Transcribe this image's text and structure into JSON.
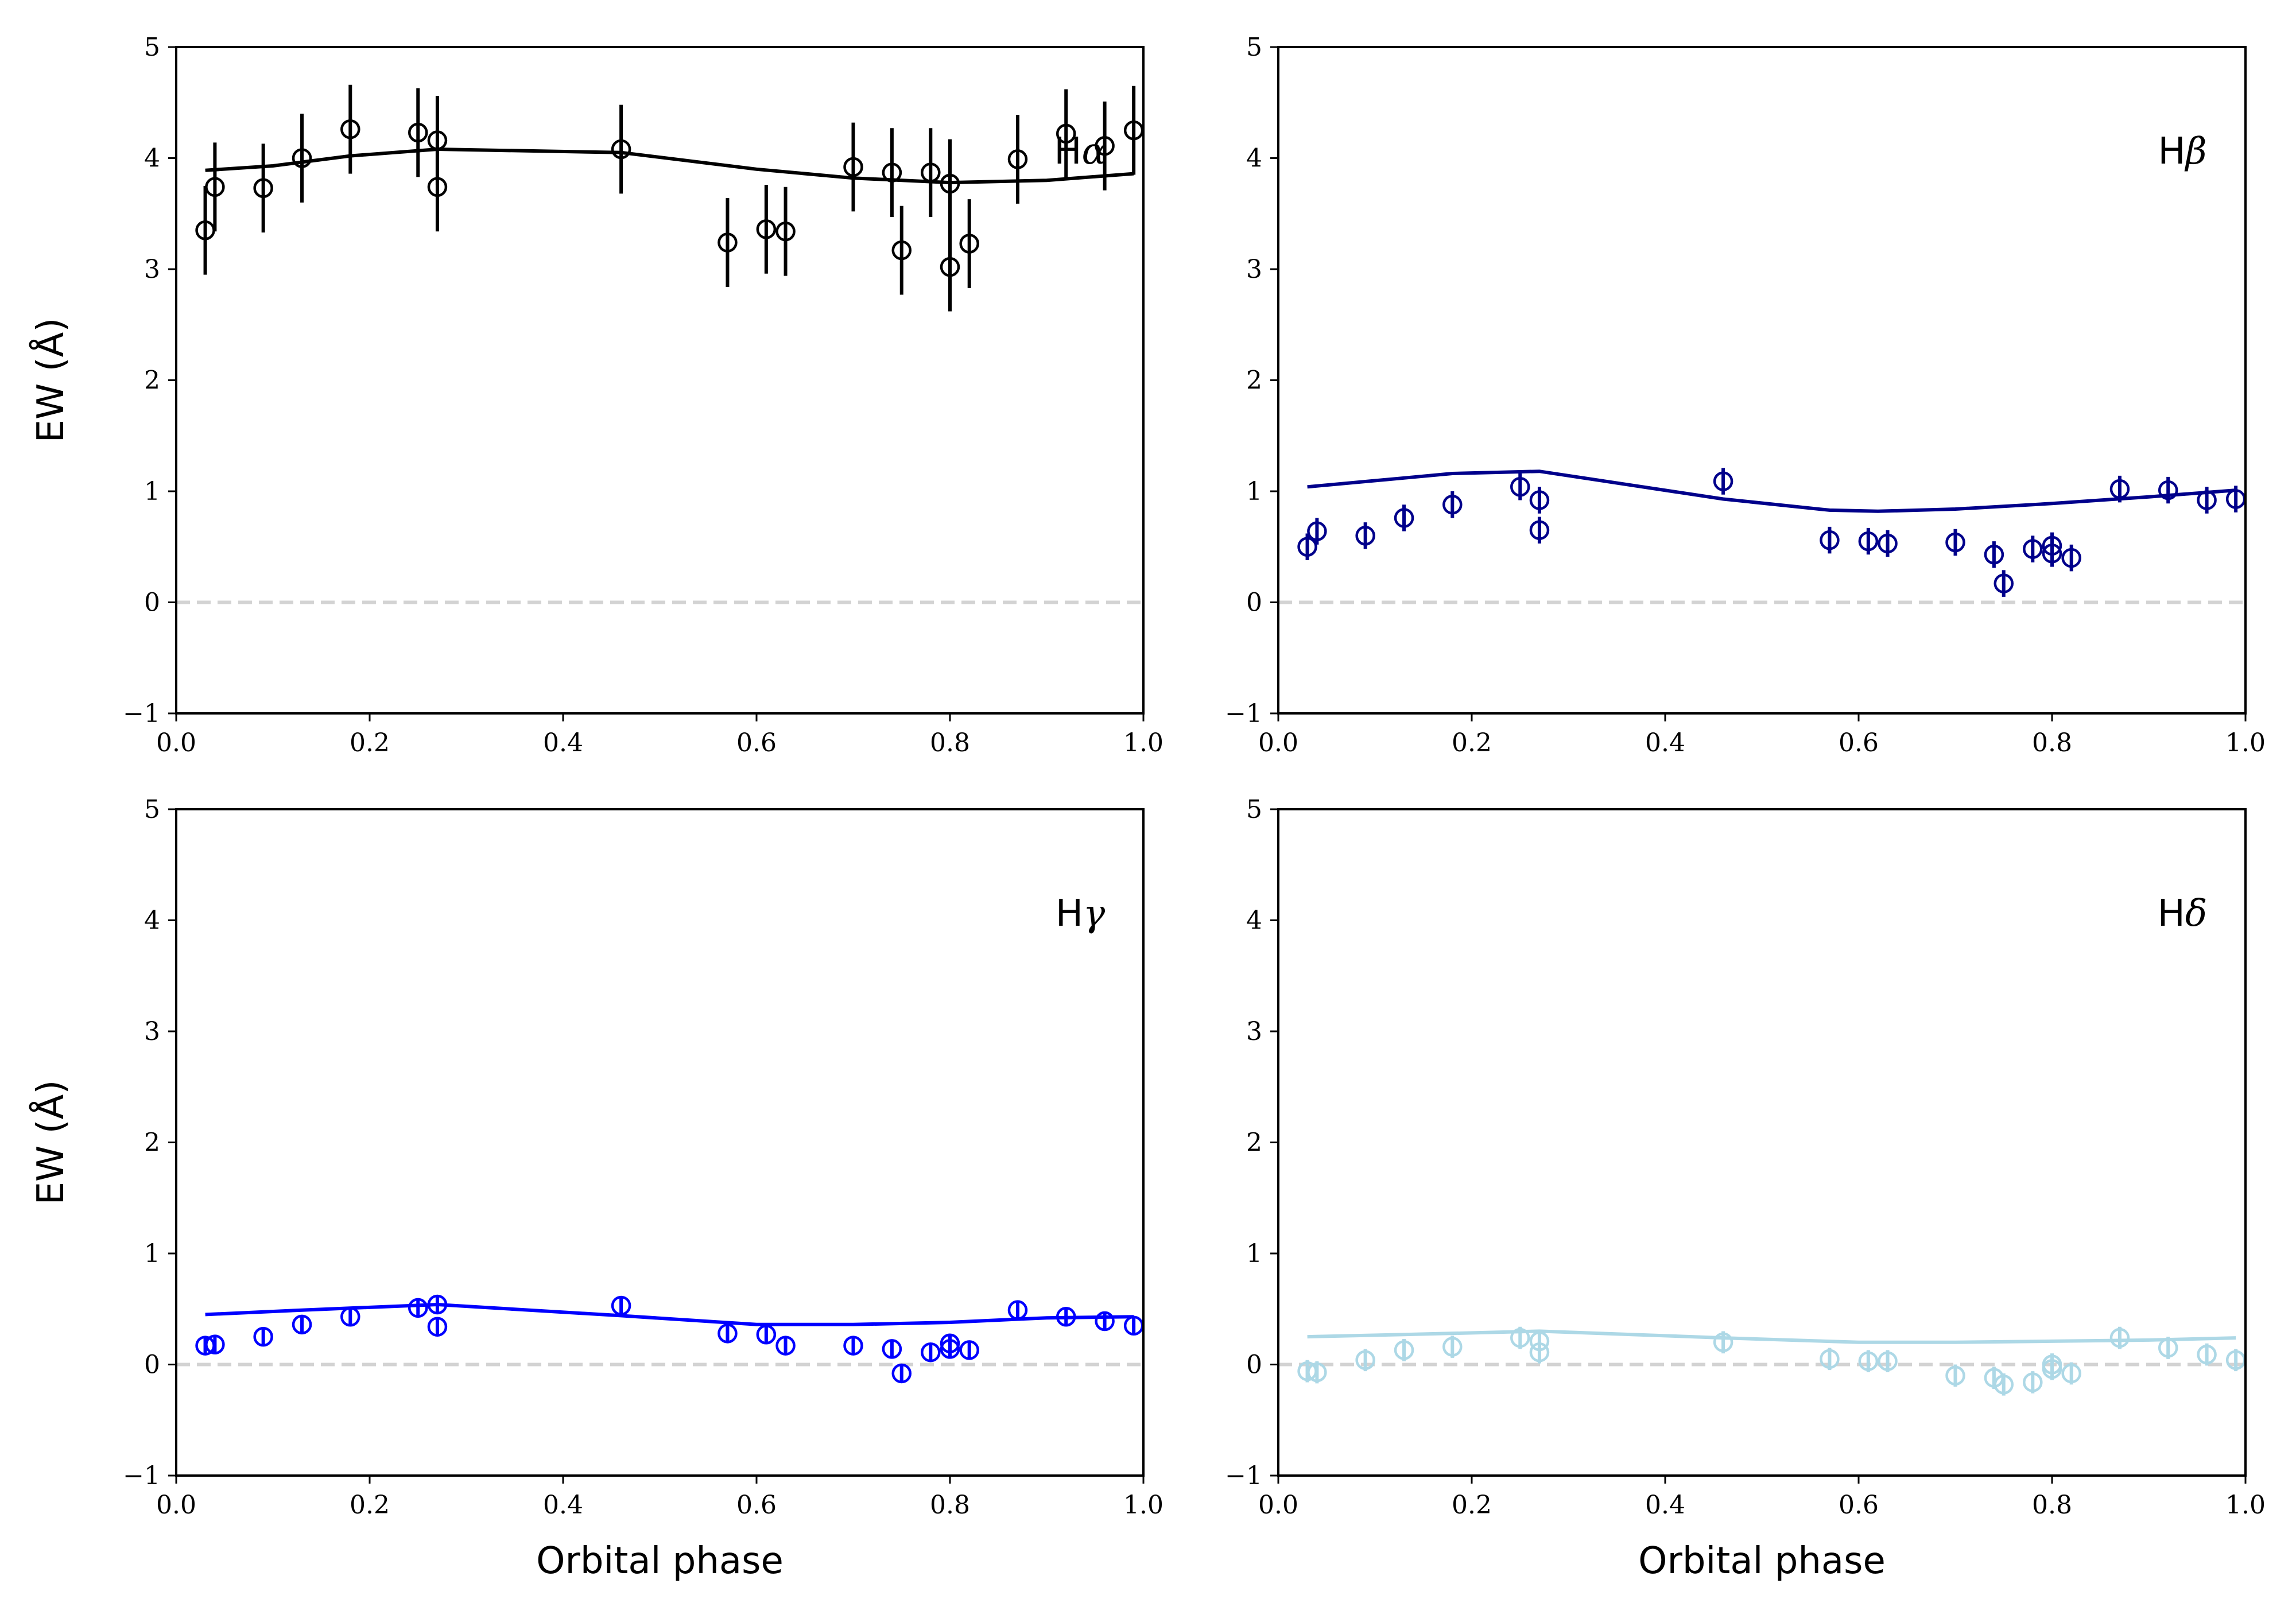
{
  "chart_data": [
    {
      "type": "scatter",
      "panel": "top-left",
      "label_prefix": "H",
      "label_greek": "α",
      "color": "#000000",
      "xlabel": "",
      "ylabel": "EW (Å)",
      "xlim": [
        0.0,
        1.0
      ],
      "ylim": [
        -1,
        5
      ],
      "xticks": [
        "0.0",
        "0.2",
        "0.4",
        "0.6",
        "0.8",
        "1.0"
      ],
      "yticks": [
        "−1",
        "0",
        "1",
        "2",
        "3",
        "4",
        "5"
      ],
      "reference_line": 0,
      "points": {
        "x": [
          0.03,
          0.04,
          0.09,
          0.13,
          0.18,
          0.25,
          0.27,
          0.27,
          0.46,
          0.57,
          0.61,
          0.63,
          0.7,
          0.74,
          0.75,
          0.78,
          0.8,
          0.8,
          0.82,
          0.87,
          0.92,
          0.96,
          0.99
        ],
        "y": [
          3.35,
          3.74,
          3.73,
          4.0,
          4.26,
          4.23,
          4.16,
          3.74,
          4.08,
          3.24,
          3.36,
          3.34,
          3.92,
          3.87,
          3.17,
          3.87,
          3.77,
          3.02,
          3.23,
          3.99,
          4.22,
          4.11,
          4.25
        ],
        "err": [
          0.4,
          0.4,
          0.4,
          0.4,
          0.4,
          0.4,
          0.4,
          0.4,
          0.4,
          0.4,
          0.4,
          0.4,
          0.4,
          0.4,
          0.4,
          0.4,
          0.4,
          0.4,
          0.4,
          0.4,
          0.4,
          0.4,
          0.4
        ]
      },
      "model": {
        "x": [
          0.03,
          0.1,
          0.18,
          0.27,
          0.46,
          0.6,
          0.7,
          0.8,
          0.9,
          0.99
        ],
        "y": [
          3.89,
          3.93,
          4.02,
          4.08,
          4.05,
          3.9,
          3.82,
          3.78,
          3.8,
          3.86
        ]
      }
    },
    {
      "type": "scatter",
      "panel": "top-right",
      "label_prefix": "H",
      "label_greek": "β",
      "color": "#00008b",
      "xlabel": "",
      "ylabel": "",
      "xlim": [
        0.0,
        1.0
      ],
      "ylim": [
        -1,
        5
      ],
      "xticks": [
        "0.0",
        "0.2",
        "0.4",
        "0.6",
        "0.8",
        "1.0"
      ],
      "yticks": [
        "−1",
        "0",
        "1",
        "2",
        "3",
        "4",
        "5"
      ],
      "reference_line": 0,
      "points": {
        "x": [
          0.03,
          0.04,
          0.09,
          0.13,
          0.18,
          0.25,
          0.27,
          0.27,
          0.46,
          0.57,
          0.61,
          0.63,
          0.7,
          0.74,
          0.75,
          0.78,
          0.8,
          0.8,
          0.82,
          0.87,
          0.92,
          0.96,
          0.99
        ],
        "y": [
          0.5,
          0.64,
          0.6,
          0.76,
          0.88,
          1.04,
          0.92,
          0.65,
          1.09,
          0.56,
          0.55,
          0.53,
          0.54,
          0.43,
          0.17,
          0.48,
          0.51,
          0.44,
          0.4,
          1.02,
          1.01,
          0.92,
          0.93
        ],
        "err": [
          0.12,
          0.12,
          0.12,
          0.12,
          0.12,
          0.12,
          0.12,
          0.12,
          0.12,
          0.12,
          0.12,
          0.12,
          0.12,
          0.12,
          0.12,
          0.12,
          0.12,
          0.12,
          0.12,
          0.12,
          0.12,
          0.12,
          0.12
        ]
      },
      "model": {
        "x": [
          0.03,
          0.13,
          0.18,
          0.27,
          0.46,
          0.57,
          0.62,
          0.7,
          0.8,
          0.9,
          0.99
        ],
        "y": [
          1.04,
          1.12,
          1.16,
          1.18,
          0.93,
          0.83,
          0.82,
          0.84,
          0.89,
          0.95,
          1.01
        ]
      }
    },
    {
      "type": "scatter",
      "panel": "bottom-left",
      "label_prefix": "H",
      "label_greek": "γ",
      "color": "#0000ff",
      "xlabel": "Orbital phase",
      "ylabel": "EW (Å)",
      "xlim": [
        0.0,
        1.0
      ],
      "ylim": [
        -1,
        5
      ],
      "xticks": [
        "0.0",
        "0.2",
        "0.4",
        "0.6",
        "0.8",
        "1.0"
      ],
      "yticks": [
        "−1",
        "0",
        "1",
        "2",
        "3",
        "4",
        "5"
      ],
      "reference_line": 0,
      "points": {
        "x": [
          0.03,
          0.04,
          0.09,
          0.13,
          0.18,
          0.25,
          0.27,
          0.27,
          0.46,
          0.57,
          0.61,
          0.63,
          0.7,
          0.74,
          0.75,
          0.78,
          0.8,
          0.8,
          0.82,
          0.87,
          0.92,
          0.96,
          0.99
        ],
        "y": [
          0.17,
          0.18,
          0.25,
          0.36,
          0.43,
          0.51,
          0.54,
          0.34,
          0.53,
          0.28,
          0.27,
          0.17,
          0.17,
          0.14,
          -0.08,
          0.11,
          0.19,
          0.14,
          0.13,
          0.49,
          0.43,
          0.39,
          0.35
        ],
        "err": [
          0.08,
          0.08,
          0.08,
          0.08,
          0.08,
          0.08,
          0.08,
          0.08,
          0.08,
          0.08,
          0.08,
          0.08,
          0.08,
          0.08,
          0.08,
          0.08,
          0.08,
          0.08,
          0.08,
          0.08,
          0.08,
          0.08,
          0.08
        ]
      },
      "model": {
        "x": [
          0.03,
          0.13,
          0.27,
          0.46,
          0.6,
          0.7,
          0.8,
          0.9,
          0.99
        ],
        "y": [
          0.45,
          0.49,
          0.54,
          0.44,
          0.36,
          0.36,
          0.38,
          0.42,
          0.43
        ]
      }
    },
    {
      "type": "scatter",
      "panel": "bottom-right",
      "label_prefix": "H",
      "label_greek": "δ",
      "color": "#add8e6",
      "xlabel": "Orbital phase",
      "ylabel": "",
      "xlim": [
        0.0,
        1.0
      ],
      "ylim": [
        -1,
        5
      ],
      "xticks": [
        "0.0",
        "0.2",
        "0.4",
        "0.6",
        "0.8",
        "1.0"
      ],
      "yticks": [
        "−1",
        "0",
        "1",
        "2",
        "3",
        "4",
        "5"
      ],
      "reference_line": 0,
      "points": {
        "x": [
          0.03,
          0.04,
          0.09,
          0.13,
          0.18,
          0.25,
          0.27,
          0.27,
          0.46,
          0.57,
          0.61,
          0.63,
          0.7,
          0.74,
          0.75,
          0.78,
          0.8,
          0.8,
          0.82,
          0.87,
          0.92,
          0.96,
          0.99
        ],
        "y": [
          -0.06,
          -0.07,
          0.04,
          0.13,
          0.16,
          0.24,
          0.21,
          0.11,
          0.2,
          0.05,
          0.03,
          0.03,
          -0.1,
          -0.12,
          -0.18,
          -0.16,
          -0.04,
          0.0,
          -0.08,
          0.24,
          0.15,
          0.09,
          0.04
        ],
        "err": [
          0.1,
          0.1,
          0.1,
          0.1,
          0.1,
          0.1,
          0.1,
          0.1,
          0.1,
          0.1,
          0.1,
          0.1,
          0.1,
          0.1,
          0.1,
          0.1,
          0.1,
          0.1,
          0.1,
          0.1,
          0.1,
          0.1,
          0.1
        ]
      },
      "model": {
        "x": [
          0.03,
          0.13,
          0.27,
          0.46,
          0.6,
          0.7,
          0.8,
          0.9,
          0.99
        ],
        "y": [
          0.25,
          0.27,
          0.3,
          0.24,
          0.2,
          0.2,
          0.21,
          0.22,
          0.24
        ]
      }
    }
  ]
}
